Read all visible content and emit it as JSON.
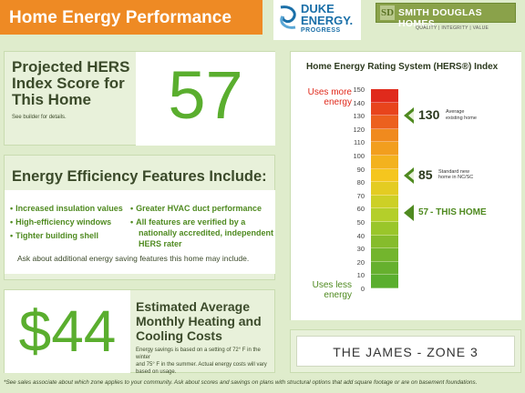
{
  "header": {
    "title": "Home Energy Performance"
  },
  "logos": {
    "duke_line1": "DUKE",
    "duke_line2": "ENERGY.",
    "duke_sub": "PROGRESS",
    "sd_mark": "SD",
    "sd_name": "SMITH DOUGLAS HOMES",
    "sd_tagline": "QUALITY | INTEGRITY | VALUE"
  },
  "hers_score": {
    "title_line1": "Projected HERS",
    "title_line2": "Index Score for",
    "title_line3": "This Home",
    "note": "See builder for details.",
    "value": "57"
  },
  "features": {
    "heading": "Energy Efficiency Features Include:",
    "col1": [
      "Increased insulation values",
      "High-efficiency windows",
      "Tighter building shell"
    ],
    "col2_a": "Greater HVAC duct performance",
    "col2_b_line1": "All features are verified by a",
    "col2_b_line2": "nationally accredited, independent",
    "col2_b_line3": "HERS rater",
    "footer": "Ask about additional energy saving features this home may include."
  },
  "cost": {
    "value": "$44",
    "title_line1": "Estimated Average",
    "title_line2": "Monthly Heating and",
    "title_line3": "Cooling Costs",
    "note_line1": "Energy savings is based on a setting of 72° F in the winter",
    "note_line2": "and 75° F in the summer. Actual energy costs will vary",
    "note_line3": "based on usage."
  },
  "chart_data": {
    "type": "bar",
    "title": "Home Energy Rating System (HERS®) Index",
    "top_label_line1": "Uses more",
    "top_label_line2": "energy",
    "bottom_label_line1": "Uses less",
    "bottom_label_line2": "energy",
    "ticks": [
      "150",
      "140",
      "130",
      "120",
      "110",
      "100",
      "90",
      "80",
      "70",
      "60",
      "50",
      "40",
      "30",
      "20",
      "10",
      "0"
    ],
    "ylim": [
      0,
      150
    ],
    "markers": [
      {
        "value": 130,
        "number": "130",
        "label_line1": "Average",
        "label_line2": "existing home"
      },
      {
        "value": 85,
        "number": "85",
        "label_line1": "Standard new",
        "label_line2": "home in NC/SC"
      },
      {
        "value": 57,
        "number": "57",
        "label_line1": "- THIS HOME",
        "label_line2": ""
      }
    ],
    "colors": {
      "high": "#e02a1c",
      "mid_high": "#f08a1e",
      "mid": "#f5c61e",
      "low_mid": "#b4cf2a",
      "low": "#5aae2e"
    }
  },
  "zone": {
    "label": "THE JAMES - ZONE 3"
  },
  "footnote": {
    "text": "*See sales associate about which zone applies to your community.  Ask about scores and savings on plans with structural options that add square footage or are on basement foundations."
  }
}
